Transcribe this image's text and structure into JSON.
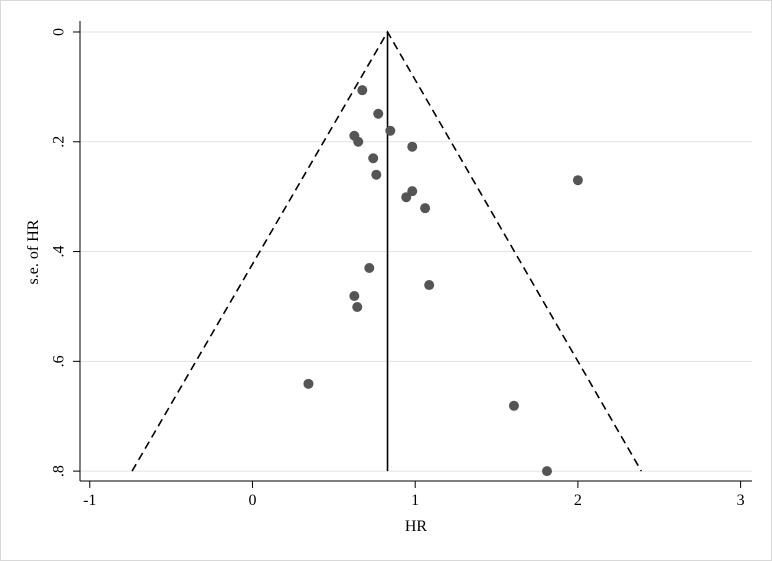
{
  "chart_data": {
    "type": "scatter",
    "x_label": "HR",
    "y_label": "s.e. of HR",
    "xlim": [
      -1.06,
      3.07
    ],
    "ylim": [
      -0.02,
      0.818
    ],
    "y_reversed": true,
    "xticks": [
      -1,
      0,
      1,
      2,
      3
    ],
    "yticks": [
      0,
      {
        "value": 0.2,
        "label": ".2"
      },
      {
        "value": 0.4,
        "label": ".4"
      },
      {
        "value": 0.6,
        "label": ".6"
      },
      {
        "value": 0.8,
        "label": ".8"
      }
    ],
    "grid": true,
    "color": "#555555",
    "x": [
      0.675,
      0.773,
      0.847,
      0.626,
      0.65,
      0.982,
      0.742,
      0.761,
      2.0,
      0.982,
      0.945,
      1.061,
      0.718,
      1.086,
      0.626,
      0.644,
      0.344,
      1.607,
      1.81
    ],
    "y": [
      0.106,
      0.149,
      0.18,
      0.189,
      0.2,
      0.209,
      0.23,
      0.26,
      0.27,
      0.29,
      0.301,
      0.321,
      0.43,
      0.461,
      0.481,
      0.501,
      0.641,
      0.681,
      0.8
    ],
    "lines": [
      {
        "style": "dashed",
        "x": [
          -0.74,
          0.83,
          2.39
        ],
        "y": [
          0.8,
          0,
          0.8
        ]
      },
      {
        "style": "solid",
        "x": [
          0.83,
          0.83
        ],
        "y": [
          0,
          0.8
        ]
      }
    ]
  }
}
